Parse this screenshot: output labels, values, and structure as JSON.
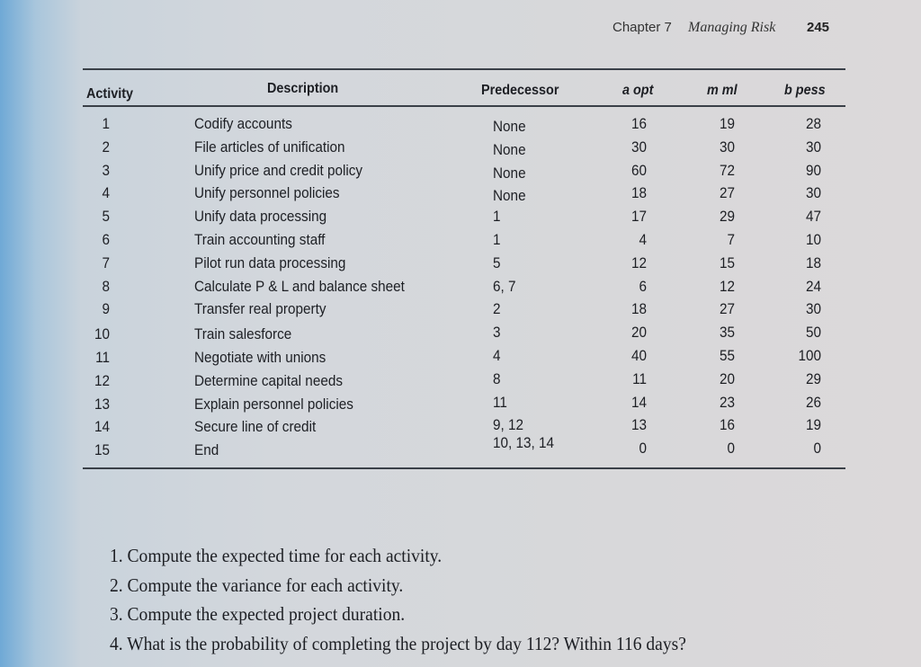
{
  "running_head": {
    "chapter": "Chapter 7",
    "chapter_title": "Managing Risk",
    "page_number": "245"
  },
  "table": {
    "headers": {
      "activity": "Activity",
      "description": "Description",
      "predecessor": "Predecessor",
      "a_opt": "a opt",
      "m_ml": "m ml",
      "b_pess": "b pess"
    },
    "rows": [
      {
        "activity": "1",
        "description": "Codify accounts",
        "predecessor": "None",
        "a": "16",
        "m": "19",
        "b": "28"
      },
      {
        "activity": "2",
        "description": "File articles of unification",
        "predecessor": "None",
        "a": "30",
        "m": "30",
        "b": "30"
      },
      {
        "activity": "3",
        "description": "Unify price and credit policy",
        "predecessor": "None",
        "a": "60",
        "m": "72",
        "b": "90"
      },
      {
        "activity": "4",
        "description": "Unify personnel policies",
        "predecessor": "None",
        "a": "18",
        "m": "27",
        "b": "30"
      },
      {
        "activity": "5",
        "description": "Unify data processing",
        "predecessor": "1",
        "a": "17",
        "m": "29",
        "b": "47"
      },
      {
        "activity": "6",
        "description": "Train accounting staff",
        "predecessor": "1",
        "a": "4",
        "m": "7",
        "b": "10"
      },
      {
        "activity": "7",
        "description": "Pilot run data processing",
        "predecessor": "5",
        "a": "12",
        "m": "15",
        "b": "18"
      },
      {
        "activity": "8",
        "description": "Calculate P & L and balance sheet",
        "predecessor": "6, 7",
        "a": "6",
        "m": "12",
        "b": "24"
      },
      {
        "activity": "9",
        "description": "Transfer real property",
        "predecessor": "2",
        "a": "18",
        "m": "27",
        "b": "30"
      },
      {
        "activity": "10",
        "description": "Train salesforce",
        "predecessor": "3",
        "a": "20",
        "m": "35",
        "b": "50"
      },
      {
        "activity": "11",
        "description": "Negotiate with unions",
        "predecessor": "4",
        "a": "40",
        "m": "55",
        "b": "100"
      },
      {
        "activity": "12",
        "description": "Determine capital needs",
        "predecessor": "8",
        "a": "11",
        "m": "20",
        "b": "29"
      },
      {
        "activity": "13",
        "description": "Explain personnel policies",
        "predecessor": "11",
        "a": "14",
        "m": "23",
        "b": "26"
      },
      {
        "activity": "14",
        "description": "Secure line of credit",
        "predecessor": "9, 12",
        "a": "13",
        "m": "16",
        "b": "19"
      },
      {
        "activity": "15",
        "description": "End",
        "predecessor": "10, 13, 14",
        "a": "0",
        "m": "0",
        "b": "0"
      }
    ]
  },
  "questions": [
    "1. Compute the expected time for each activity.",
    "2. Compute the variance for each activity.",
    "3. Compute the expected project duration.",
    "4. What is the probability of completing the project by day 112? Within 116 days?"
  ]
}
